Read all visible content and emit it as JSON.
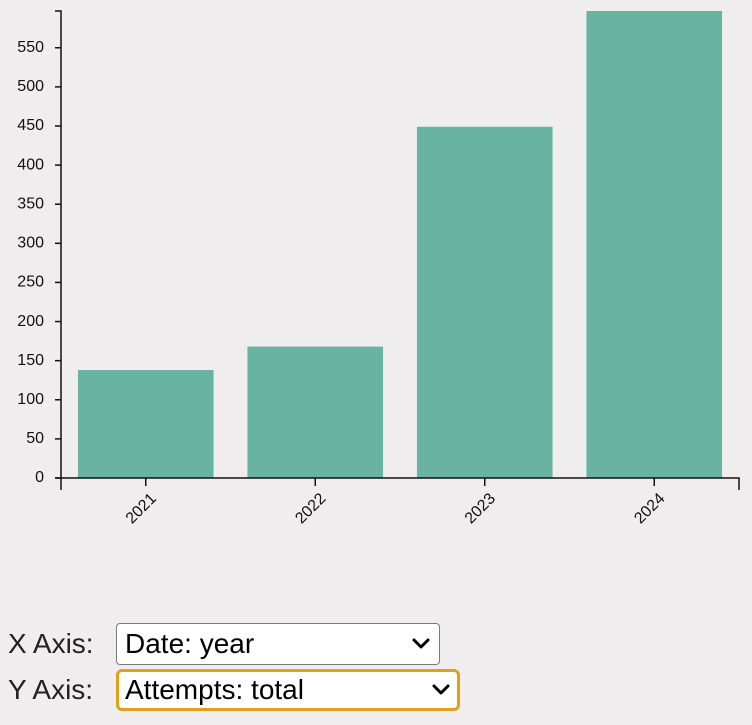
{
  "chart_data": {
    "type": "bar",
    "categories": [
      "2021",
      "2022",
      "2023",
      "2024"
    ],
    "values": [
      138,
      168,
      449,
      597
    ],
    "y_ticks": [
      0,
      50,
      100,
      150,
      200,
      250,
      300,
      350,
      400,
      450,
      500,
      550
    ],
    "ylim": [
      0,
      597
    ],
    "grid": false,
    "bar_color": "#69b3a2",
    "title": "",
    "xlabel": "",
    "ylabel": ""
  },
  "controls": {
    "x_axis": {
      "label": "X Axis:",
      "selected": "Date: year"
    },
    "y_axis": {
      "label": "Y Axis:",
      "selected": "Attempts: total"
    }
  },
  "icons": {
    "dropdown": "chevron-down-icon"
  },
  "colors": {
    "focus_ring": "#e2a019",
    "axis": "#111111"
  }
}
